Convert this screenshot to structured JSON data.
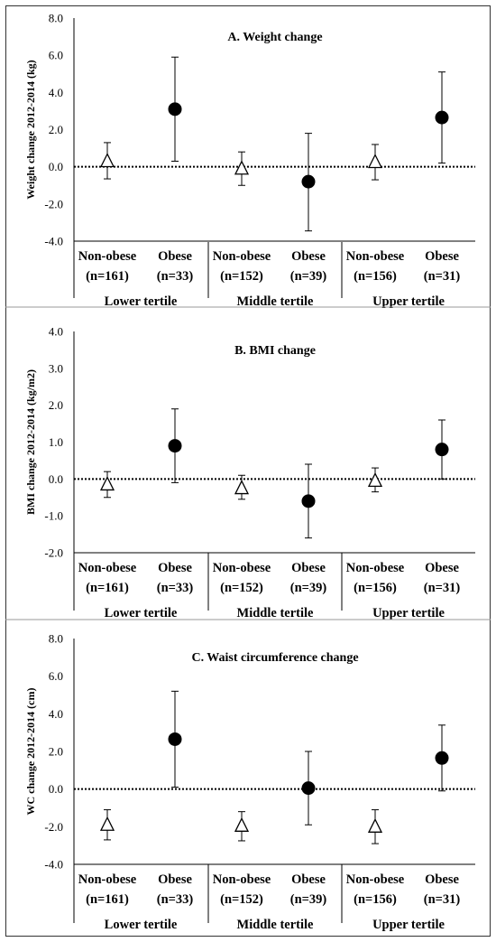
{
  "chart_data": [
    {
      "type": "scatter",
      "title": "A. Weight change",
      "ylabel": "Weight change 2012-2014 (kg)",
      "ylim": [
        -4,
        8
      ],
      "yticks": [
        "8.0",
        "6.0",
        "4.0",
        "2.0",
        "0.0",
        "-2.0",
        "-4.0"
      ],
      "categories": [
        {
          "label": "Non-obese",
          "n": "(n=161)"
        },
        {
          "label": "Obese",
          "n": "(n=33)"
        },
        {
          "label": "Non-obese",
          "n": "(n=152)"
        },
        {
          "label": "Obese",
          "n": "(n=39)"
        },
        {
          "label": "Non-obese",
          "n": "(n=156)"
        },
        {
          "label": "Obese",
          "n": "(n=31)"
        }
      ],
      "groups": [
        "Lower tertile",
        "Middle tertile",
        "Upper tertile"
      ],
      "series": [
        {
          "marker": "open-triangle",
          "values": [
            0.3,
            -0.1,
            0.25
          ],
          "low": [
            -0.65,
            -1.0,
            -0.7
          ],
          "high": [
            1.3,
            0.8,
            1.2
          ]
        },
        {
          "marker": "filled-circle",
          "values": [
            3.1,
            -0.8,
            2.65
          ],
          "low": [
            0.3,
            -3.45,
            0.2
          ],
          "high": [
            5.9,
            1.8,
            5.1
          ]
        }
      ],
      "reference_line": 0
    },
    {
      "type": "scatter",
      "title": "B. BMI change",
      "ylabel": "BMI change 2012-2014 (kg/m2)",
      "ylim": [
        -2,
        4
      ],
      "yticks": [
        "4.0",
        "3.0",
        "2.0",
        "1.0",
        "0.0",
        "-1.0",
        "-2.0"
      ],
      "categories": [
        {
          "label": "Non-obese",
          "n": "(n=161)"
        },
        {
          "label": "Obese",
          "n": "(n=33)"
        },
        {
          "label": "Non-obese",
          "n": "(n=152)"
        },
        {
          "label": "Obese",
          "n": "(n=39)"
        },
        {
          "label": "Non-obese",
          "n": "(n=156)"
        },
        {
          "label": "Obese",
          "n": "(n=31)"
        }
      ],
      "groups": [
        "Lower tertile",
        "Middle tertile",
        "Upper tertile"
      ],
      "series": [
        {
          "marker": "open-triangle",
          "values": [
            -0.15,
            -0.25,
            -0.05
          ],
          "low": [
            -0.5,
            -0.55,
            -0.35
          ],
          "high": [
            0.2,
            0.1,
            0.3
          ]
        },
        {
          "marker": "filled-circle",
          "values": [
            0.9,
            -0.6,
            0.8
          ],
          "low": [
            -0.1,
            -1.6,
            0.0
          ],
          "high": [
            1.9,
            0.4,
            1.6
          ]
        }
      ],
      "reference_line": 0
    },
    {
      "type": "scatter",
      "title": "C. Waist circumference change",
      "ylabel": "WC change 2012-2014 (cm)",
      "ylim": [
        -4,
        8
      ],
      "yticks": [
        "8.0",
        "6.0",
        "4.0",
        "2.0",
        "0.0",
        "-2.0",
        "-4.0"
      ],
      "categories": [
        {
          "label": "Non-obese",
          "n": "(n=161)"
        },
        {
          "label": "Obese",
          "n": "(n=33)"
        },
        {
          "label": "Non-obese",
          "n": "(n=152)"
        },
        {
          "label": "Obese",
          "n": "(n=39)"
        },
        {
          "label": "Non-obese",
          "n": "(n=156)"
        },
        {
          "label": "Obese",
          "n": "(n=31)"
        }
      ],
      "groups": [
        "Lower tertile",
        "Middle tertile",
        "Upper tertile"
      ],
      "series": [
        {
          "marker": "open-triangle",
          "values": [
            -1.9,
            -1.95,
            -2.0
          ],
          "low": [
            -2.7,
            -2.75,
            -2.9
          ],
          "high": [
            -1.1,
            -1.2,
            -1.1
          ]
        },
        {
          "marker": "filled-circle",
          "values": [
            2.65,
            0.05,
            1.65
          ],
          "low": [
            0.1,
            -1.9,
            -0.1
          ],
          "high": [
            5.2,
            2.0,
            3.4
          ]
        }
      ],
      "reference_line": 0
    }
  ],
  "colors": {
    "line": "#000000",
    "open_marker_fill": "#ffffff",
    "filled_marker": "#000000",
    "frame": "#333333"
  }
}
